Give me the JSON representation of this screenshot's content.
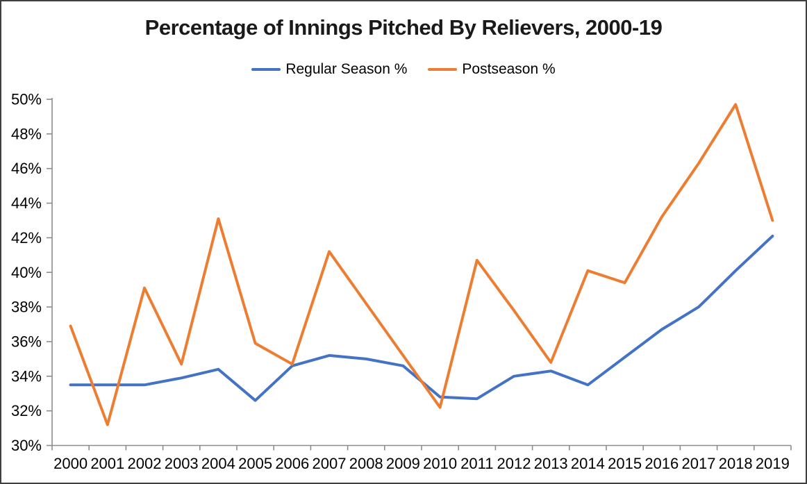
{
  "chart_data": {
    "type": "line",
    "title": "Percentage of Innings Pitched By Relievers, 2000-19",
    "categories": [
      "2000",
      "2001",
      "2002",
      "2003",
      "2004",
      "2005",
      "2006",
      "2007",
      "2008",
      "2009",
      "2010",
      "2011",
      "2012",
      "2013",
      "2014",
      "2015",
      "2016",
      "2017",
      "2018",
      "2019"
    ],
    "series": [
      {
        "name": "Regular Season %",
        "color": "#4472C4",
        "values": [
          33.5,
          33.5,
          33.5,
          33.9,
          34.4,
          32.6,
          34.6,
          35.2,
          35.0,
          34.6,
          32.8,
          32.7,
          34.0,
          34.3,
          33.5,
          35.1,
          36.7,
          38.0,
          40.1,
          42.1
        ]
      },
      {
        "name": "Postseason %",
        "color": "#ED7D31",
        "values": [
          36.9,
          31.2,
          39.1,
          34.7,
          43.1,
          35.9,
          34.7,
          41.2,
          38.2,
          35.2,
          32.2,
          40.7,
          37.8,
          34.8,
          40.1,
          39.4,
          43.2,
          46.3,
          49.7,
          43.0
        ]
      }
    ],
    "y_axis": {
      "min": 30,
      "max": 50,
      "step": 2,
      "tick_labels": [
        "30%",
        "32%",
        "34%",
        "36%",
        "38%",
        "40%",
        "42%",
        "44%",
        "46%",
        "48%",
        "50%"
      ]
    },
    "x_axis": {
      "tick_labels": [
        "2000",
        "2001",
        "2002",
        "2003",
        "2004",
        "2005",
        "2006",
        "2007",
        "2008",
        "2009",
        "2010",
        "2011",
        "2012",
        "2013",
        "2014",
        "2015",
        "2016",
        "2017",
        "2018",
        "2019"
      ]
    },
    "legend_position": "top",
    "grid": false,
    "axis_color": "#8c8c8c",
    "tick_label_color": "#000000"
  }
}
